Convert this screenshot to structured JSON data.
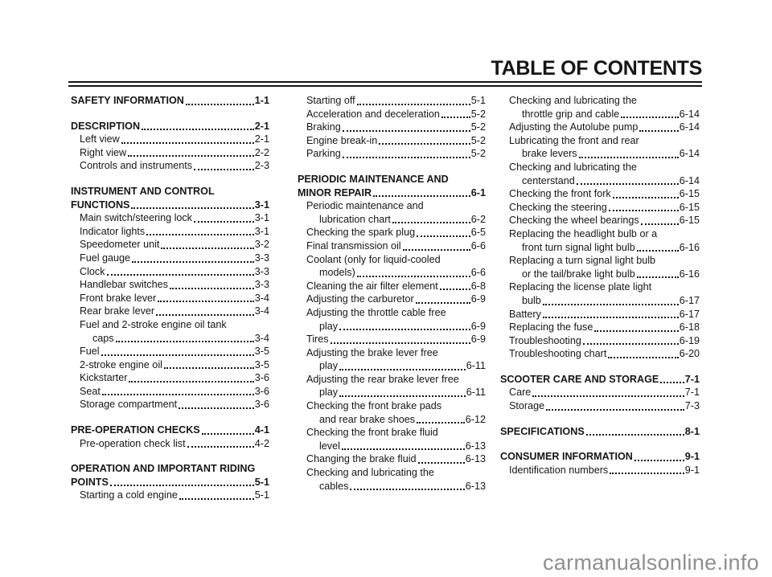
{
  "page": {
    "title": "TABLE OF CONTENTS",
    "watermark": "carmanualsonline.info"
  },
  "colors": {
    "text": "#161616",
    "rule": "#141414",
    "watermark": "#8f8f8f"
  },
  "toc": {
    "columns": [
      {
        "lines": [
          {
            "s": "section",
            "t": "SAFETY INFORMATION",
            "p": "1-1"
          },
          {
            "s": "blank"
          },
          {
            "s": "section",
            "t": "DESCRIPTION",
            "p": "2-1"
          },
          {
            "s": "item",
            "t": "Left view",
            "p": "2-1"
          },
          {
            "s": "item",
            "t": "Right view",
            "p": "2-2"
          },
          {
            "s": "item",
            "t": "Controls and instruments",
            "p": "2-3"
          },
          {
            "s": "blank"
          },
          {
            "s": "sectionwrap",
            "t": "INSTRUMENT AND CONTROL"
          },
          {
            "s": "section",
            "t": "FUNCTIONS",
            "p": "3-1"
          },
          {
            "s": "item",
            "t": "Main switch/steering lock",
            "p": "3-1"
          },
          {
            "s": "item",
            "t": "Indicator lights",
            "p": "3-1"
          },
          {
            "s": "item",
            "t": "Speedometer unit",
            "p": "3-2"
          },
          {
            "s": "item",
            "t": "Fuel gauge",
            "p": "3-3"
          },
          {
            "s": "item",
            "t": "Clock",
            "p": "3-3"
          },
          {
            "s": "item",
            "t": "Handlebar switches",
            "p": "3-3"
          },
          {
            "s": "item",
            "t": "Front brake lever",
            "p": "3-4"
          },
          {
            "s": "item",
            "t": "Rear brake lever",
            "p": "3-4"
          },
          {
            "s": "itemwrap",
            "t": "Fuel and 2-stroke engine oil tank"
          },
          {
            "s": "cont",
            "t": "caps",
            "p": "3-4"
          },
          {
            "s": "item",
            "t": "Fuel",
            "p": "3-5"
          },
          {
            "s": "item",
            "t": "2-stroke engine oil",
            "p": "3-5"
          },
          {
            "s": "item",
            "t": "Kickstarter",
            "p": "3-6"
          },
          {
            "s": "item",
            "t": "Seat",
            "p": "3-6"
          },
          {
            "s": "item",
            "t": "Storage compartment",
            "p": "3-6"
          },
          {
            "s": "blank"
          },
          {
            "s": "section",
            "t": "PRE-OPERATION CHECKS",
            "p": "4-1"
          },
          {
            "s": "item",
            "t": "Pre-operation check list",
            "p": "4-2"
          },
          {
            "s": "blank"
          },
          {
            "s": "sectionwrap",
            "t": "OPERATION AND IMPORTANT RIDING"
          },
          {
            "s": "section",
            "t": "POINTS",
            "p": "5-1"
          },
          {
            "s": "item",
            "t": "Starting a cold engine",
            "p": "5-1"
          }
        ]
      },
      {
        "lines": [
          {
            "s": "item",
            "t": "Starting off",
            "p": "5-1"
          },
          {
            "s": "item",
            "t": "Acceleration and deceleration",
            "p": "5-2"
          },
          {
            "s": "item",
            "t": "Braking",
            "p": "5-2"
          },
          {
            "s": "item",
            "t": "Engine break-in",
            "p": "5-2"
          },
          {
            "s": "item",
            "t": "Parking",
            "p": "5-2"
          },
          {
            "s": "blank"
          },
          {
            "s": "sectionwrap",
            "t": "PERIODIC MAINTENANCE AND"
          },
          {
            "s": "section",
            "t": "MINOR REPAIR",
            "p": "6-1"
          },
          {
            "s": "itemwrap",
            "t": "Periodic maintenance and"
          },
          {
            "s": "cont",
            "t": "lubrication chart",
            "p": "6-2"
          },
          {
            "s": "item",
            "t": "Checking the spark plug",
            "p": "6-5"
          },
          {
            "s": "item",
            "t": "Final transmission oil",
            "p": "6-6"
          },
          {
            "s": "itemwrap",
            "t": "Coolant (only for liquid-cooled"
          },
          {
            "s": "cont",
            "t": "models)",
            "p": "6-6"
          },
          {
            "s": "item",
            "t": "Cleaning the air filter element",
            "p": "6-8"
          },
          {
            "s": "item",
            "t": "Adjusting the carburetor",
            "p": "6-9"
          },
          {
            "s": "itemwrap",
            "t": "Adjusting the throttle cable free"
          },
          {
            "s": "cont",
            "t": "play",
            "p": "6-9"
          },
          {
            "s": "item",
            "t": "Tires",
            "p": "6-9"
          },
          {
            "s": "itemwrap",
            "t": "Adjusting the brake lever free"
          },
          {
            "s": "cont",
            "t": "play",
            "p": "6-11"
          },
          {
            "s": "itemwrap",
            "t": "Adjusting the rear brake lever free"
          },
          {
            "s": "cont",
            "t": "play",
            "p": "6-11"
          },
          {
            "s": "itemwrap",
            "t": "Checking the front brake pads"
          },
          {
            "s": "cont",
            "t": "and rear brake shoes",
            "p": "6-12"
          },
          {
            "s": "itemwrap",
            "t": "Checking the front brake fluid"
          },
          {
            "s": "cont",
            "t": "level",
            "p": "6-13"
          },
          {
            "s": "item",
            "t": "Changing the brake fluid",
            "p": "6-13"
          },
          {
            "s": "itemwrap",
            "t": "Checking and lubricating the"
          },
          {
            "s": "cont",
            "t": "cables",
            "p": "6-13"
          }
        ]
      },
      {
        "lines": [
          {
            "s": "itemwrap",
            "t": "Checking and lubricating the"
          },
          {
            "s": "cont",
            "t": "throttle grip and cable",
            "p": "6-14"
          },
          {
            "s": "item",
            "t": "Adjusting the Autolube pump",
            "p": "6-14"
          },
          {
            "s": "itemwrap",
            "t": "Lubricating the front and rear"
          },
          {
            "s": "cont",
            "t": "brake levers",
            "p": "6-14"
          },
          {
            "s": "itemwrap",
            "t": "Checking and lubricating the"
          },
          {
            "s": "cont",
            "t": "centerstand",
            "p": "6-14"
          },
          {
            "s": "item",
            "t": "Checking the front fork",
            "p": "6-15"
          },
          {
            "s": "item",
            "t": "Checking the steering",
            "p": "6-15"
          },
          {
            "s": "item",
            "t": "Checking the wheel bearings",
            "p": "6-15"
          },
          {
            "s": "itemwrap",
            "t": "Replacing the headlight bulb or a"
          },
          {
            "s": "cont",
            "t": "front turn signal light bulb",
            "p": "6-16"
          },
          {
            "s": "itemwrap",
            "t": "Replacing a turn signal light bulb"
          },
          {
            "s": "cont",
            "t": "or the tail/brake light bulb",
            "p": "6-16"
          },
          {
            "s": "itemwrap",
            "t": "Replacing the license plate light"
          },
          {
            "s": "cont",
            "t": "bulb",
            "p": "6-17"
          },
          {
            "s": "item",
            "t": "Battery",
            "p": "6-17"
          },
          {
            "s": "item",
            "t": "Replacing the fuse",
            "p": "6-18"
          },
          {
            "s": "item",
            "t": "Troubleshooting",
            "p": "6-19"
          },
          {
            "s": "item",
            "t": "Troubleshooting chart",
            "p": "6-20"
          },
          {
            "s": "blank"
          },
          {
            "s": "section",
            "t": "SCOOTER CARE AND STORAGE",
            "p": "7-1"
          },
          {
            "s": "item",
            "t": "Care",
            "p": "7-1"
          },
          {
            "s": "item",
            "t": "Storage",
            "p": "7-3"
          },
          {
            "s": "blank"
          },
          {
            "s": "section",
            "t": "SPECIFICATIONS",
            "p": "8-1"
          },
          {
            "s": "blank"
          },
          {
            "s": "section",
            "t": "CONSUMER INFORMATION",
            "p": "9-1"
          },
          {
            "s": "item",
            "t": "Identification numbers",
            "p": "9-1"
          }
        ]
      }
    ]
  }
}
